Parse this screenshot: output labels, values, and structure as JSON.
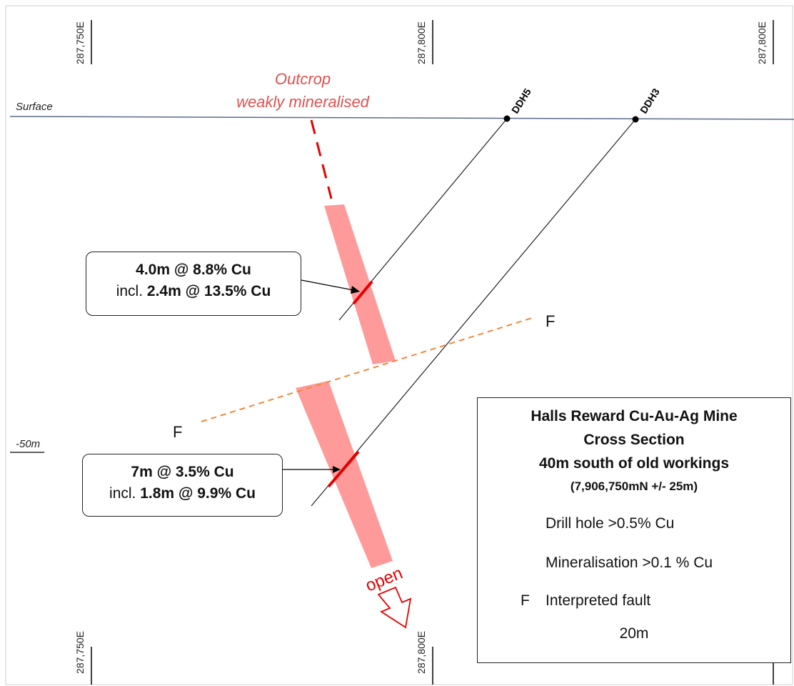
{
  "coords": {
    "top_left": "287,750E",
    "top_mid": "287,800E",
    "top_right": "287,800E",
    "bottom_left": "287,750E",
    "bottom_mid": "287,800E"
  },
  "surface_label": "Surface",
  "depth_label": "-50m",
  "outcrop": {
    "line1": "Outcrop",
    "line2": "weakly mineralised"
  },
  "drill_holes": [
    "DDH5",
    "DDH3"
  ],
  "fault_labels": [
    "F",
    "F"
  ],
  "intercept_upper": {
    "line1": "4.0m @ 8.8% Cu",
    "line2_prefix": "incl. ",
    "line2_bold": "2.4m @ 13.5% Cu"
  },
  "intercept_lower": {
    "line1": "7m @ 3.5% Cu",
    "line2_prefix": "incl. ",
    "line2_bold": "1.8m @ 9.9% Cu"
  },
  "open_label": "open",
  "legend": {
    "title1": "Halls Reward Cu-Au-Ag Mine",
    "title2": "Cross Section",
    "title3": "40m south of old workings",
    "subtitle": "(7,906,750mN +/- 25m)",
    "items": [
      {
        "key": "F",
        "label": "Drill hole >0.5% Cu"
      },
      {
        "label": "Mineralisation >0.1 % Cu"
      },
      {
        "key": "F",
        "label": "Interpreted fault"
      }
    ],
    "scale_label": "20m"
  },
  "colors": {
    "mineralisation": "#ff9a9a",
    "drill_hit": "#e60000",
    "fault": "#f0883c",
    "outcrop_text": "#e05050",
    "surface_line": "#5a6a8a"
  }
}
